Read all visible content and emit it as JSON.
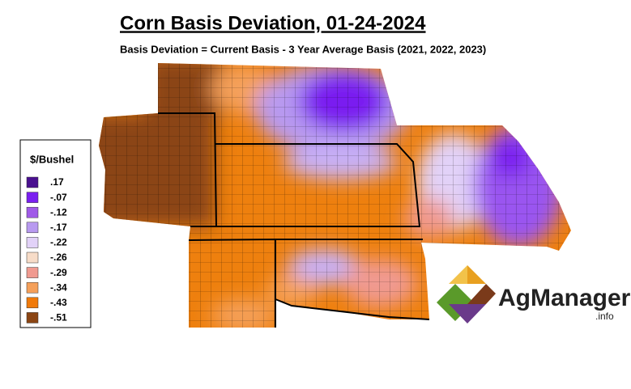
{
  "header": {
    "title": "Corn Basis Deviation, 01-24-2024",
    "subtitle": "Basis Deviation = Current Basis - 3 Year Average Basis (2021, 2022, 2023)"
  },
  "legend": {
    "title": "$/Bushel",
    "items": [
      {
        "label": ".17",
        "color": "#4a1090"
      },
      {
        "label": "-.07",
        "color": "#7a1ff0"
      },
      {
        "label": "-.12",
        "color": "#a05ae8"
      },
      {
        "label": "-.17",
        "color": "#b89af0"
      },
      {
        "label": "-.22",
        "color": "#e2d2f8"
      },
      {
        "label": "-.26",
        "color": "#f7dcc8"
      },
      {
        "label": "-.29",
        "color": "#f09a90"
      },
      {
        "label": "-.34",
        "color": "#f5a05a"
      },
      {
        "label": "-.43",
        "color": "#f07a0a"
      },
      {
        "label": "-.51",
        "color": "#8b4513"
      }
    ]
  },
  "logo": {
    "name": "AgManager",
    "suffix": ".info"
  }
}
